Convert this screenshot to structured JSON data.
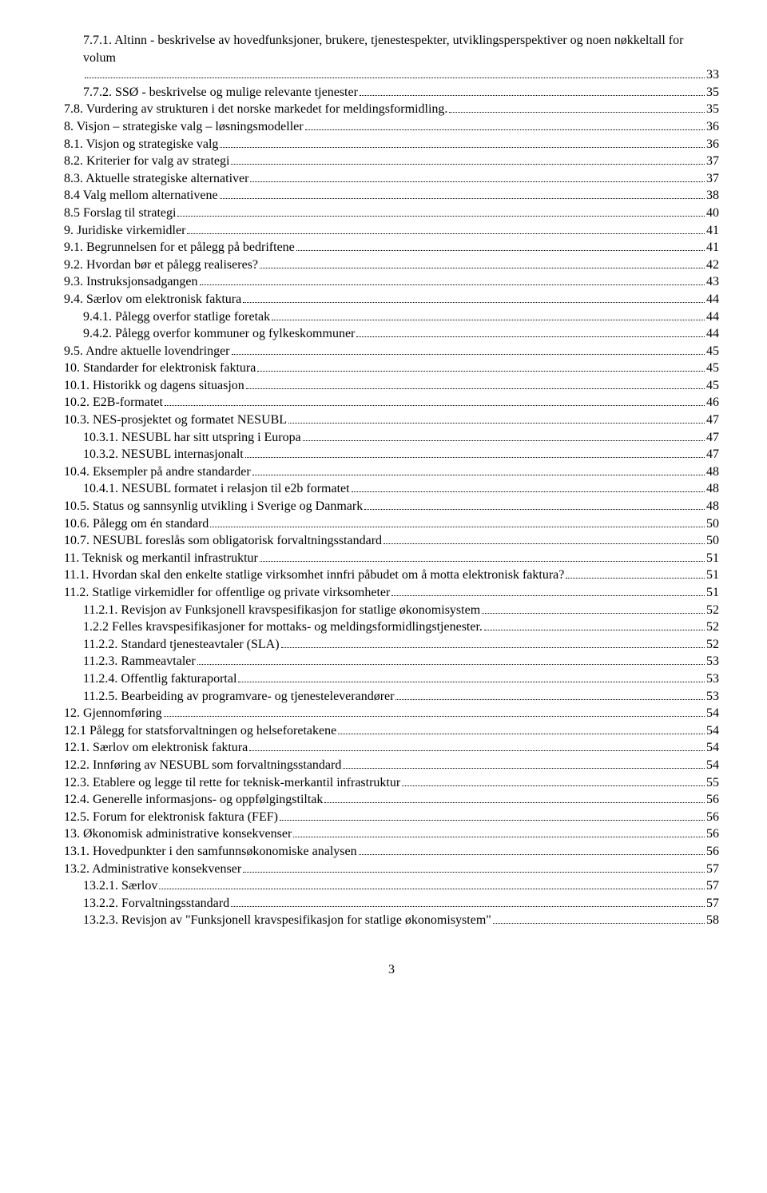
{
  "footer_page_number": "3",
  "toc": [
    {
      "indent": 1,
      "title": "7.7.1. Altinn - beskrivelse av hovedfunksjoner, brukere, tjenestespekter, utviklingsperspektiver og noen nøkkeltall for volum",
      "page": "33",
      "wrap": true
    },
    {
      "indent": 1,
      "title": "7.7.2. SSØ  - beskrivelse og mulige relevante tjenester",
      "page": "35"
    },
    {
      "indent": 0,
      "title": "7.8. Vurdering av strukturen i det norske markedet for meldingsformidling.",
      "page": "35"
    },
    {
      "indent": 0,
      "title": "8. Visjon – strategiske valg – løsningsmodeller",
      "page": "36"
    },
    {
      "indent": 0,
      "title": "8.1. Visjon og strategiske valg",
      "page": "36"
    },
    {
      "indent": 0,
      "title": "8.2. Kriterier for valg av strategi",
      "page": "37"
    },
    {
      "indent": 0,
      "title": "8.3. Aktuelle strategiske alternativer",
      "page": "37"
    },
    {
      "indent": 0,
      "title": "8.4 Valg mellom alternativene",
      "page": "38"
    },
    {
      "indent": 0,
      "title": "8.5 Forslag til strategi",
      "page": "40"
    },
    {
      "indent": 0,
      "title": "9. Juridiske virkemidler",
      "page": "41"
    },
    {
      "indent": 0,
      "title": "9.1. Begrunnelsen for et pålegg på bedriftene",
      "page": "41"
    },
    {
      "indent": 0,
      "title": "9.2. Hvordan bør et pålegg realiseres?",
      "page": "42"
    },
    {
      "indent": 0,
      "title": "9.3. Instruksjonsadgangen",
      "page": "43"
    },
    {
      "indent": 0,
      "title": "9.4. Særlov om elektronisk faktura",
      "page": "44"
    },
    {
      "indent": 1,
      "title": "9.4.1. Pålegg overfor statlige foretak",
      "page": "44"
    },
    {
      "indent": 1,
      "title": "9.4.2. Pålegg overfor kommuner og fylkeskommuner",
      "page": "44"
    },
    {
      "indent": 0,
      "title": "9.5. Andre aktuelle lovendringer",
      "page": "45"
    },
    {
      "indent": 0,
      "title": "10. Standarder for elektronisk faktura",
      "page": "45"
    },
    {
      "indent": 0,
      "title": "10.1. Historikk og dagens situasjon",
      "page": "45"
    },
    {
      "indent": 0,
      "title": "10.2. E2B-formatet",
      "page": "46"
    },
    {
      "indent": 0,
      "title": "10.3. NES-prosjektet og formatet NESUBL",
      "page": "47"
    },
    {
      "indent": 1,
      "title": "10.3.1. NESUBL har sitt utspring  i Europa",
      "page": "47"
    },
    {
      "indent": 1,
      "title": "10.3.2. NESUBL internasjonalt",
      "page": "47"
    },
    {
      "indent": 0,
      "title": "10.4. Eksempler på andre standarder",
      "page": "48"
    },
    {
      "indent": 1,
      "title": "10.4.1. NESUBL formatet i relasjon til e2b formatet",
      "page": "48"
    },
    {
      "indent": 0,
      "title": "10.5. Status og sannsynlig utvikling i Sverige og Danmark",
      "page": "48"
    },
    {
      "indent": 0,
      "title": "10.6. Pålegg om én standard",
      "page": "50"
    },
    {
      "indent": 0,
      "title": "10.7. NESUBL foreslås som obligatorisk forvaltningsstandard",
      "page": "50"
    },
    {
      "indent": 0,
      "title": "11. Teknisk og merkantil infrastruktur",
      "page": "51"
    },
    {
      "indent": 0,
      "title": "11.1. Hvordan skal den enkelte statlige virksomhet innfri påbudet om å motta elektronisk faktura?",
      "page": "51",
      "wrap": true
    },
    {
      "indent": 0,
      "title": "11.2. Statlige virkemidler for offentlige og private virksomheter",
      "page": "51"
    },
    {
      "indent": 1,
      "title": "11.2.1.    Revisjon av Funksjonell kravspesifikasjon for statlige økonomisystem",
      "page": "52"
    },
    {
      "indent": 1,
      "title": "1.2.2 Felles kravspesifikasjoner for mottaks- og meldingsformidlingstjenester.",
      "page": "52"
    },
    {
      "indent": 1,
      "title": "11.2.2. Standard tjenesteavtaler   (SLA)",
      "page": "52"
    },
    {
      "indent": 1,
      "title": "11.2.3. Rammeavtaler",
      "page": "53"
    },
    {
      "indent": 1,
      "title": "11.2.4. Offentlig fakturaportal",
      "page": "53"
    },
    {
      "indent": 1,
      "title": "11.2.5. Bearbeiding av programvare- og tjenesteleverandører",
      "page": "53"
    },
    {
      "indent": 0,
      "title": "12. Gjennomføring",
      "page": "54"
    },
    {
      "indent": 0,
      "title": "12.1 Pålegg for statsforvaltningen og helseforetakene",
      "page": "54"
    },
    {
      "indent": 0,
      "title": "12.1. Særlov om elektronisk faktura",
      "page": "54"
    },
    {
      "indent": 0,
      "title": "12.2. Innføring av NESUBL som forvaltningsstandard",
      "page": "54"
    },
    {
      "indent": 0,
      "title": "12.3. Etablere og legge til rette for teknisk-merkantil infrastruktur",
      "page": "55"
    },
    {
      "indent": 0,
      "title": "12.4. Generelle informasjons- og oppfølgingstiltak",
      "page": "56"
    },
    {
      "indent": 0,
      "title": "12.5. Forum for elektronisk faktura (FEF)",
      "page": "56"
    },
    {
      "indent": 0,
      "title": "13. Økonomisk administrative konsekvenser",
      "page": "56"
    },
    {
      "indent": 0,
      "title": "13.1. Hovedpunkter i den samfunnsøkonomiske analysen",
      "page": "56"
    },
    {
      "indent": 0,
      "title": "13.2. Administrative konsekvenser",
      "page": "57"
    },
    {
      "indent": 1,
      "title": "13.2.1. Særlov",
      "page": "57"
    },
    {
      "indent": 1,
      "title": "13.2.2. Forvaltningsstandard",
      "page": "57"
    },
    {
      "indent": 1,
      "title": "13.2.3. Revisjon av \"Funksjonell kravspesifikasjon for statlige økonomisystem\"",
      "page": "58"
    }
  ]
}
